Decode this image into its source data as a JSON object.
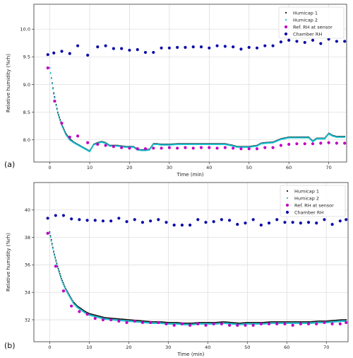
{
  "chart_data": [
    {
      "type": "scatter",
      "panel_label": "(a)",
      "xlabel": "Time (min)",
      "ylabel": "Relative humidity (%rh)",
      "xlim": [
        -4,
        74.5
      ],
      "ylim": [
        7.6,
        10.45
      ],
      "xticks": [
        0,
        10,
        20,
        30,
        40,
        50,
        60,
        70
      ],
      "yticks": [
        8.0,
        8.5,
        9.0,
        9.5,
        10.0
      ],
      "ytick_decimals": 1,
      "grid": true,
      "legend_position": "top-right",
      "colors": {
        "humicap1": "#111111",
        "humicap2": "#17becf",
        "ref": "#c000c0",
        "chamber": "#0a0aa8"
      },
      "series": [
        {
          "name": "Humicap 1",
          "key": "humicap1",
          "style": "dense",
          "x": [
            0,
            1,
            2,
            3,
            4,
            5,
            6,
            7,
            8,
            9,
            10,
            11,
            12,
            13,
            14,
            15,
            16,
            17,
            18,
            19,
            20,
            21,
            22,
            23,
            24,
            25,
            26,
            27,
            28,
            30,
            32,
            34,
            36,
            38,
            40,
            42,
            44,
            46,
            47,
            48,
            50,
            52,
            53,
            54,
            56,
            57,
            58,
            60,
            62,
            64,
            65,
            66,
            67,
            68,
            69,
            70,
            71,
            72,
            74
          ],
          "y": [
            9.3,
            8.85,
            8.5,
            8.28,
            8.12,
            8.02,
            7.96,
            7.92,
            7.88,
            7.84,
            7.8,
            7.92,
            7.95,
            7.97,
            7.95,
            7.9,
            7.9,
            7.9,
            7.89,
            7.88,
            7.88,
            7.88,
            7.83,
            7.82,
            7.82,
            7.83,
            7.93,
            7.93,
            7.92,
            7.92,
            7.93,
            7.93,
            7.93,
            7.93,
            7.93,
            7.93,
            7.93,
            7.9,
            7.88,
            7.88,
            7.88,
            7.9,
            7.94,
            7.95,
            7.96,
            7.99,
            8.02,
            8.05,
            8.05,
            8.05,
            8.05,
            7.98,
            8.03,
            8.03,
            8.03,
            8.12,
            8.08,
            8.06,
            8.06
          ]
        },
        {
          "name": "Humicap 2",
          "key": "humicap2",
          "style": "dense",
          "x": [
            0,
            1,
            2,
            3,
            4,
            5,
            6,
            7,
            8,
            9,
            10,
            11,
            12,
            13,
            14,
            15,
            16,
            17,
            18,
            19,
            20,
            21,
            22,
            23,
            24,
            25,
            26,
            27,
            28,
            30,
            32,
            34,
            36,
            38,
            40,
            42,
            44,
            46,
            47,
            48,
            50,
            52,
            53,
            54,
            56,
            57,
            58,
            60,
            62,
            64,
            65,
            66,
            67,
            68,
            69,
            70,
            71,
            72,
            74
          ],
          "y": [
            9.3,
            8.83,
            8.48,
            8.26,
            8.1,
            8.0,
            7.95,
            7.91,
            7.87,
            7.83,
            7.79,
            7.91,
            7.94,
            7.96,
            7.94,
            7.89,
            7.89,
            7.89,
            7.88,
            7.87,
            7.87,
            7.87,
            7.82,
            7.81,
            7.81,
            7.82,
            7.92,
            7.92,
            7.91,
            7.91,
            7.92,
            7.92,
            7.92,
            7.92,
            7.92,
            7.92,
            7.92,
            7.89,
            7.87,
            7.87,
            7.87,
            7.89,
            7.93,
            7.94,
            7.95,
            7.98,
            8.01,
            8.04,
            8.04,
            8.04,
            8.04,
            7.97,
            8.02,
            8.02,
            8.02,
            8.11,
            8.07,
            8.05,
            8.05
          ]
        },
        {
          "name": "Ref. RH at sensor",
          "key": "ref",
          "style": "dot",
          "x": [
            -0.5,
            1.2,
            3,
            5,
            7,
            9.5,
            12,
            14,
            16,
            18,
            20,
            22,
            24,
            26,
            28,
            30,
            32,
            34,
            36,
            38,
            40,
            42,
            44,
            46,
            48,
            50,
            52,
            54,
            56,
            58,
            60,
            62,
            64,
            66,
            68,
            70,
            72,
            74
          ],
          "y": [
            9.3,
            8.7,
            8.3,
            8.05,
            8.07,
            7.95,
            7.92,
            7.9,
            7.88,
            7.86,
            7.85,
            7.84,
            7.84,
            7.85,
            7.85,
            7.86,
            7.85,
            7.86,
            7.85,
            7.86,
            7.86,
            7.85,
            7.86,
            7.85,
            7.84,
            7.84,
            7.84,
            7.86,
            7.86,
            7.9,
            7.92,
            7.93,
            7.93,
            7.93,
            7.94,
            7.95,
            7.94,
            7.94
          ]
        },
        {
          "name": "Chamber RH",
          "key": "chamber",
          "style": "dot",
          "x": [
            -0.5,
            1,
            3,
            5,
            7,
            9.5,
            12,
            14,
            16,
            18,
            20,
            22,
            24,
            26,
            28,
            30,
            32,
            34,
            36,
            38,
            40,
            42,
            44,
            46,
            48,
            50,
            52,
            54,
            56,
            58,
            60,
            62,
            64,
            66,
            68,
            70,
            72,
            74
          ],
          "y": [
            9.54,
            9.57,
            9.6,
            9.56,
            9.7,
            9.53,
            9.68,
            9.7,
            9.65,
            9.65,
            9.62,
            9.63,
            9.58,
            9.58,
            9.66,
            9.66,
            9.67,
            9.67,
            9.68,
            9.68,
            9.66,
            9.7,
            9.69,
            9.68,
            9.64,
            9.67,
            9.66,
            9.7,
            9.7,
            9.77,
            9.8,
            9.78,
            9.76,
            9.8,
            9.74,
            9.82,
            9.78,
            9.78
          ]
        }
      ],
      "legend": [
        "Humicap 1",
        "Humicap 2",
        "Ref. RH at sensor",
        "Chamber RH"
      ]
    },
    {
      "type": "scatter",
      "panel_label": "(b)",
      "xlabel": "Time (min)",
      "ylabel": "Relative humidity (%rh)",
      "xlim": [
        -4,
        75.5
      ],
      "ylim": [
        30.4,
        42
      ],
      "xticks": [
        0,
        10,
        20,
        30,
        40,
        50,
        60,
        70
      ],
      "yticks": [
        32,
        34,
        36,
        38,
        40
      ],
      "ytick_decimals": 0,
      "grid": true,
      "legend_position": "top-right",
      "colors": {
        "humicap1": "#111111",
        "humicap2": "#17becf",
        "ref": "#c000c0",
        "chamber": "#0a0aa8"
      },
      "series": [
        {
          "name": "Humicap 1",
          "key": "humicap1",
          "style": "dense",
          "x": [
            0,
            1,
            2,
            3,
            4,
            5,
            6,
            7,
            8,
            9,
            10,
            12,
            14,
            16,
            18,
            20,
            22,
            24,
            26,
            28,
            30,
            32,
            34,
            36,
            38,
            40,
            42,
            44,
            46,
            48,
            50,
            52,
            54,
            56,
            58,
            60,
            62,
            64,
            66,
            68,
            70,
            72,
            74,
            75
          ],
          "y": [
            38.4,
            37.0,
            35.9,
            35.0,
            34.3,
            33.8,
            33.3,
            33.0,
            32.8,
            32.6,
            32.45,
            32.3,
            32.15,
            32.1,
            32.05,
            32.0,
            31.95,
            31.9,
            31.85,
            31.85,
            31.8,
            31.8,
            31.75,
            31.75,
            31.8,
            31.8,
            31.8,
            31.85,
            31.8,
            31.75,
            31.8,
            31.8,
            31.8,
            31.85,
            31.85,
            31.85,
            31.85,
            31.85,
            31.85,
            31.9,
            31.9,
            31.95,
            32.0,
            32.0
          ]
        },
        {
          "name": "Humicap 2",
          "key": "humicap2",
          "style": "dense",
          "x": [
            0,
            1,
            2,
            3,
            4,
            5,
            6,
            7,
            8,
            9,
            10,
            12,
            14,
            16,
            18,
            20,
            22,
            24,
            26,
            28,
            30,
            32,
            34,
            36,
            38,
            40,
            42,
            44,
            46,
            48,
            50,
            52,
            54,
            56,
            58,
            60,
            62,
            64,
            66,
            68,
            70,
            72,
            74,
            75
          ],
          "y": [
            38.3,
            36.9,
            35.8,
            34.9,
            34.2,
            33.7,
            33.2,
            32.9,
            32.7,
            32.5,
            32.35,
            32.2,
            32.05,
            32.0,
            31.95,
            31.9,
            31.85,
            31.8,
            31.75,
            31.75,
            31.7,
            31.7,
            31.65,
            31.65,
            31.7,
            31.7,
            31.7,
            31.75,
            31.7,
            31.65,
            31.7,
            31.7,
            31.7,
            31.75,
            31.75,
            31.75,
            31.75,
            31.75,
            31.75,
            31.8,
            31.8,
            31.85,
            31.9,
            31.9
          ]
        },
        {
          "name": "Ref. RH at sensor",
          "key": "ref",
          "style": "dot",
          "x": [
            -0.5,
            1.5,
            3.5,
            5.5,
            7.5,
            9.5,
            11.5,
            13.5,
            15.5,
            17.5,
            19.5,
            21.5,
            23.5,
            25.5,
            27.5,
            29.5,
            31.5,
            33.5,
            35.5,
            37.5,
            39.5,
            41.5,
            43.5,
            45.5,
            47.5,
            49.5,
            51.5,
            53.5,
            55.5,
            57.5,
            59.5,
            61.5,
            63.5,
            65.5,
            67.5,
            69.5,
            71.5,
            73.5,
            75
          ],
          "y": [
            38.3,
            35.9,
            34.1,
            33.0,
            32.6,
            32.4,
            32.1,
            32.0,
            32.0,
            31.9,
            31.8,
            31.9,
            31.8,
            31.8,
            31.8,
            31.7,
            31.6,
            31.7,
            31.6,
            31.7,
            31.6,
            31.7,
            31.7,
            31.6,
            31.6,
            31.6,
            31.6,
            31.7,
            31.7,
            31.7,
            31.7,
            31.6,
            31.7,
            31.7,
            31.7,
            31.8,
            31.7,
            31.7,
            31.8
          ]
        },
        {
          "name": "Chamber RH",
          "key": "chamber",
          "style": "dot",
          "x": [
            -0.5,
            1.5,
            3.5,
            5.5,
            7.5,
            9.5,
            11.5,
            13.5,
            15.5,
            17.5,
            19.5,
            21.5,
            23.5,
            25.5,
            27.5,
            29.5,
            31.5,
            33.5,
            35.5,
            37.5,
            39.5,
            41.5,
            43.5,
            45.5,
            47.5,
            49.5,
            51.5,
            53.5,
            55.5,
            57.5,
            59.5,
            61.5,
            63.5,
            65.5,
            67.5,
            69.5,
            71.5,
            73.5,
            75
          ],
          "y": [
            39.4,
            39.6,
            39.6,
            39.35,
            39.3,
            39.25,
            39.25,
            39.2,
            39.2,
            39.4,
            39.15,
            39.3,
            39.1,
            39.2,
            39.3,
            39.1,
            38.9,
            38.9,
            38.9,
            39.3,
            39.1,
            39.15,
            39.3,
            39.25,
            38.95,
            39.05,
            39.3,
            38.9,
            39.05,
            39.3,
            39.1,
            39.1,
            39.05,
            39.1,
            39.05,
            39.3,
            38.95,
            39.2,
            39.3
          ]
        }
      ],
      "legend": [
        "Humicap 1",
        "Humicap 2",
        "Ref. RH at sensor",
        "Chamber RH"
      ]
    }
  ]
}
